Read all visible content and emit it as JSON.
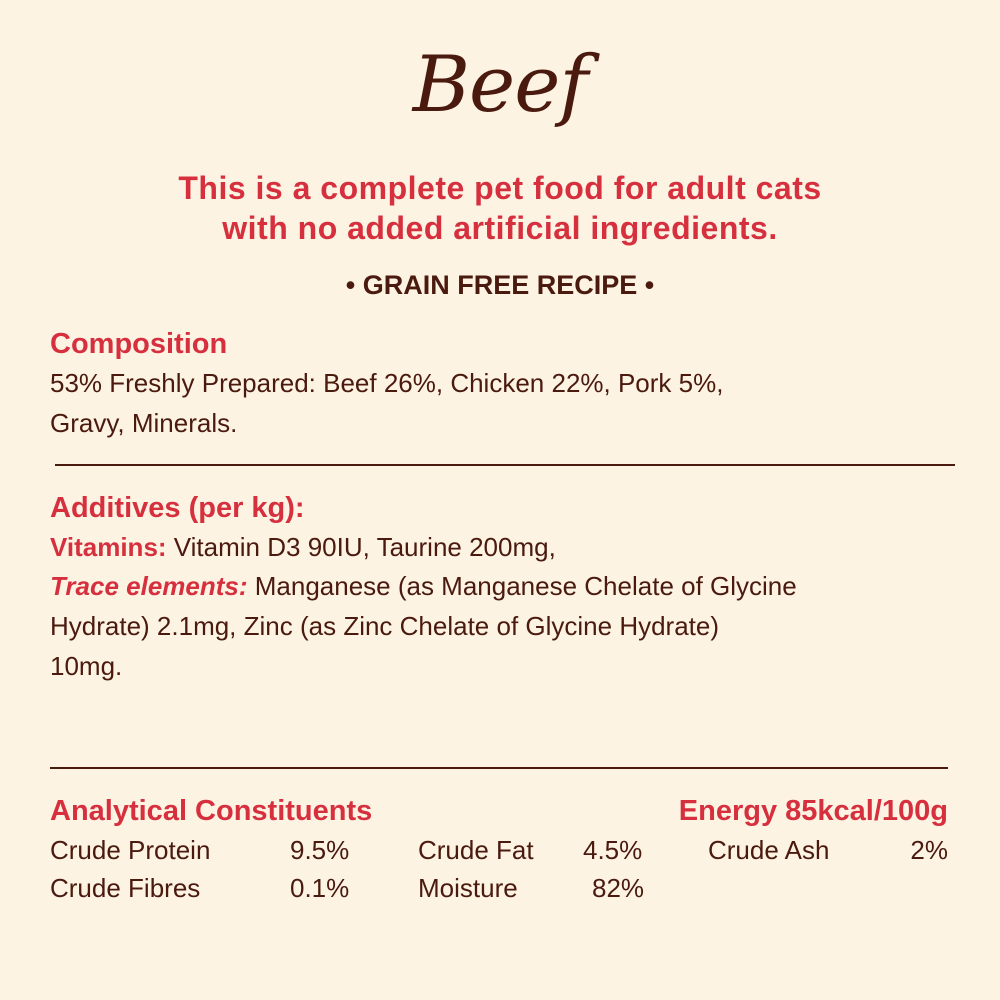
{
  "title": "Beef",
  "subtitle_lines": [
    "This is a complete pet food for adult cats",
    "with no added artificial ingredients."
  ],
  "badge": "• GRAIN FREE RECIPE •",
  "composition": {
    "heading": "Composition",
    "lines": [
      "53% Freshly Prepared: Beef 26%, Chicken 22%, Pork 5%,",
      "Gravy, Minerals."
    ]
  },
  "additives": {
    "heading": "Additives (per kg):",
    "vitamins_label": "Vitamins:",
    "vitamins_text": " Vitamin D3 90IU, Taurine 200mg,",
    "trace_label": "Trace elements:",
    "trace_text": " Manganese (as Manganese Chelate of Glycine",
    "lines": [
      "Hydrate) 2.1mg, Zinc (as Zinc Chelate of Glycine Hydrate)",
      "10mg."
    ]
  },
  "analytical": {
    "heading": "Analytical Constituents",
    "energy": "Energy 85kcal/100g",
    "items": [
      {
        "label": "Crude Protein",
        "value": "9.5%"
      },
      {
        "label": "Crude Fat",
        "value": "4.5%"
      },
      {
        "label": "Crude Ash",
        "value": "2%"
      },
      {
        "label": "Crude Fibres",
        "value": "0.1%"
      },
      {
        "label": "Moisture",
        "value": "82%"
      }
    ]
  },
  "colors": {
    "background": "#fdf3e3",
    "accent_red": "#d6303f",
    "text_brown": "#4a1a0e"
  }
}
